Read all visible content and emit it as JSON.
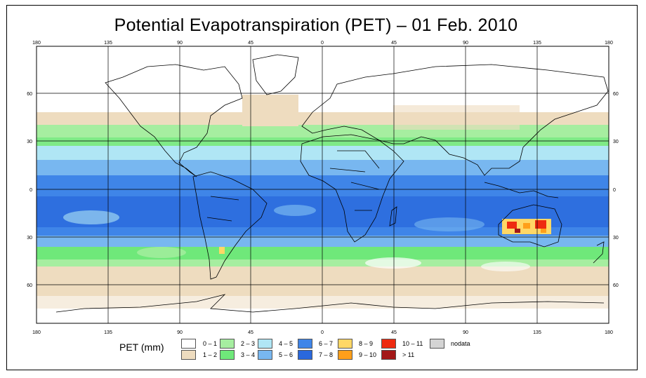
{
  "title": "Potential Evapotranspiration (PET) – 01 Feb. 2010",
  "axes": {
    "lon_labels": [
      "180",
      "135",
      "90",
      "45",
      "0",
      "45",
      "90",
      "135",
      "180"
    ],
    "lat_labels": [
      "60",
      "30",
      "0",
      "30",
      "60"
    ]
  },
  "legend": {
    "title": "PET (mm)",
    "items": [
      {
        "label": "0 – 1",
        "color": "#ffffff"
      },
      {
        "label": "1 – 2",
        "color": "#eedcbf"
      },
      {
        "label": "2 – 3",
        "color": "#a6eea0"
      },
      {
        "label": "3 – 4",
        "color": "#6fe87a"
      },
      {
        "label": "4 – 5",
        "color": "#b0e6f5"
      },
      {
        "label": "5 – 6",
        "color": "#78b7f0"
      },
      {
        "label": "6 – 7",
        "color": "#3f85e8"
      },
      {
        "label": "7 – 8",
        "color": "#2a68dc"
      },
      {
        "label": "8 – 9",
        "color": "#ffd766"
      },
      {
        "label": "9 – 10",
        "color": "#ff9f1a"
      },
      {
        "label": "10 – 11",
        "color": "#ee2a10"
      },
      {
        "label": "> 11",
        "color": "#a31818"
      },
      {
        "label": "nodata",
        "color": "#d4d4d4"
      }
    ]
  }
}
